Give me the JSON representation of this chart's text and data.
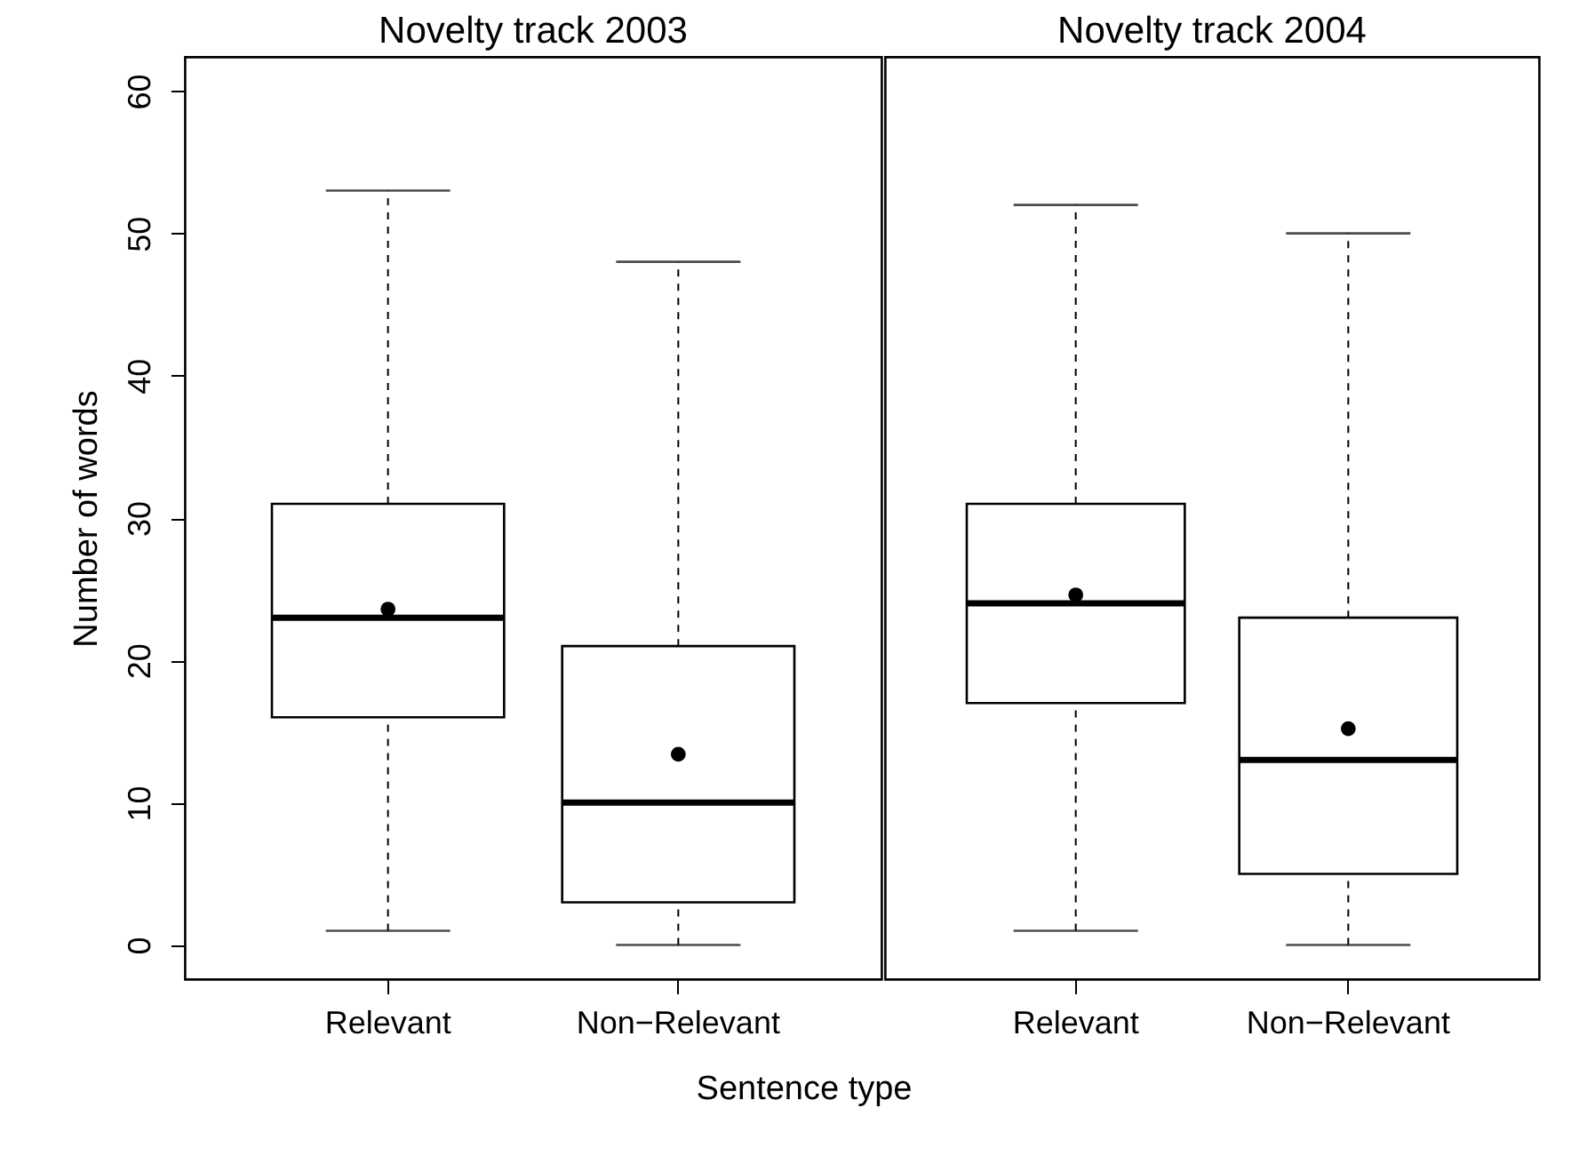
{
  "chart_data": [
    {
      "type": "box",
      "title": "Novelty track 2003",
      "xlabel": "Sentence type",
      "ylabel": "Number of words",
      "categories": [
        "Relevant",
        "Non−Relevant"
      ],
      "boxes": [
        {
          "low": 1,
          "q1": 16,
          "median": 23,
          "q3": 31,
          "high": 53,
          "mean": 23.6
        },
        {
          "low": 0,
          "q1": 3,
          "median": 10,
          "q3": 21,
          "high": 48,
          "mean": 13.4
        }
      ],
      "ylim": [
        -2.4,
        62.4
      ],
      "yticks": [
        0,
        10,
        20,
        30,
        40,
        50,
        60
      ]
    },
    {
      "type": "box",
      "title": "Novelty track 2004",
      "categories": [
        "Relevant",
        "Non−Relevant"
      ],
      "boxes": [
        {
          "low": 1,
          "q1": 17,
          "median": 24,
          "q3": 31,
          "high": 52,
          "mean": 24.6
        },
        {
          "low": 0,
          "q1": 5,
          "median": 13,
          "q3": 23,
          "high": 50,
          "mean": 15.2
        }
      ],
      "ylim": [
        -2.4,
        62.4
      ],
      "yticks": [
        0,
        10,
        20,
        30,
        40,
        50,
        60
      ],
      "tick_labels": "x"
    }
  ]
}
